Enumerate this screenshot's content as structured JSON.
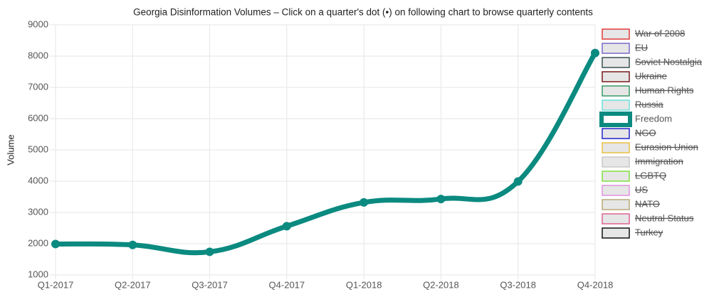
{
  "chart_data": {
    "type": "line",
    "title": "Georgia Disinformation Volumes – Click on a quarter's dot (•) on following chart to browse quarterly contents",
    "y_label": "Volume",
    "categories": [
      "Q1-2017",
      "Q2-2017",
      "Q3-2017",
      "Q4-2017",
      "Q1-2018",
      "Q2-2018",
      "Q3-2018",
      "Q4-2018"
    ],
    "ylim": [
      1000,
      9000
    ],
    "yticks": [
      1000,
      2000,
      3000,
      4000,
      5000,
      6000,
      7000,
      8000,
      9000
    ],
    "grid": true,
    "legend": "right",
    "series": [
      {
        "name": "War of 2008",
        "color": "#e03a3a",
        "hidden": true
      },
      {
        "name": "EU",
        "color": "#7b68c8",
        "hidden": true
      },
      {
        "name": "Soviet Nostalgia",
        "color": "#3a5050",
        "hidden": true
      },
      {
        "name": "Ukraine",
        "color": "#7a1a1a",
        "hidden": true
      },
      {
        "name": "Human Rights",
        "color": "#3a9a6a",
        "hidden": true
      },
      {
        "name": "Russia",
        "color": "#6ae0e0",
        "hidden": true
      },
      {
        "name": "Freedom",
        "color": "#0b8a80",
        "hidden": false,
        "values": [
          1990,
          1960,
          1740,
          2560,
          3320,
          3430,
          3990,
          8100
        ]
      },
      {
        "name": "NGO",
        "color": "#2222cc",
        "hidden": true
      },
      {
        "name": "Eurasion Union",
        "color": "#e8c040",
        "hidden": true
      },
      {
        "name": "Immigration",
        "color": "#c8c8c8",
        "hidden": true
      },
      {
        "name": "LGBTQ",
        "color": "#80e040",
        "hidden": true
      },
      {
        "name": "US",
        "color": "#e090e0",
        "hidden": true
      },
      {
        "name": "NATO",
        "color": "#b8a878",
        "hidden": true
      },
      {
        "name": "Neutral Status",
        "color": "#e06090",
        "hidden": true
      },
      {
        "name": "Turkey",
        "color": "#111111",
        "hidden": true
      }
    ]
  }
}
